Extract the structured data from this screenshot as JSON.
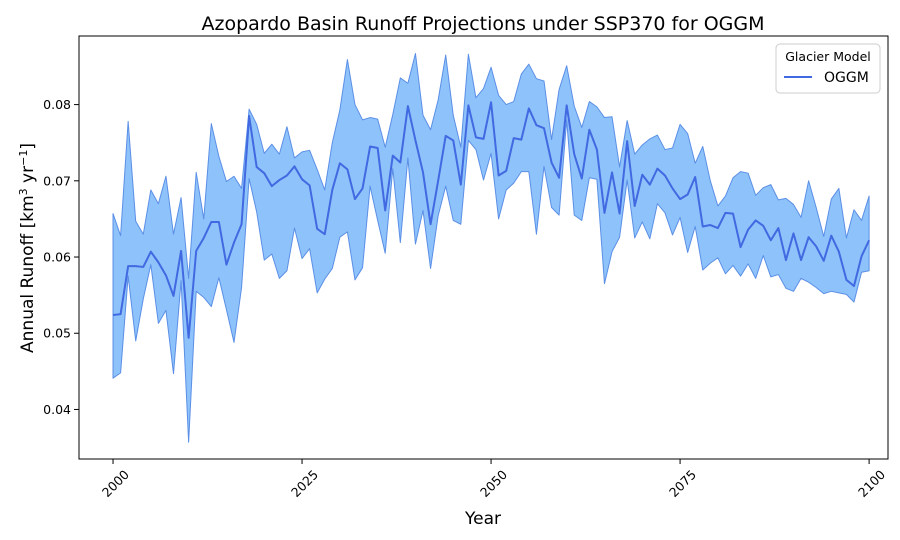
{
  "chart_data": {
    "type": "line",
    "title": "Azopardo Basin Runoff Projections under SSP370 for OGGM",
    "xlabel": "Year",
    "ylabel_main": "Annual Runoff [km",
    "ylabel_sup1": "3",
    "ylabel_mid": " yr",
    "ylabel_sup2": "−1",
    "ylabel_end": "]",
    "xlim": [
      1995.5,
      2102.5
    ],
    "ylim": [
      0.0335,
      0.089
    ],
    "xticks": [
      2000,
      2025,
      2050,
      2075,
      2100
    ],
    "yticks": [
      0.04,
      0.05,
      0.06,
      0.07,
      0.08
    ],
    "ytick_labels": [
      "0.04",
      "0.05",
      "0.06",
      "0.07",
      "0.08"
    ],
    "grid": false,
    "legend": {
      "title": "Glacier Model",
      "placement": "top-right",
      "entries": [
        "OGGM"
      ]
    },
    "colors": {
      "line": "#4169e1",
      "band_fill": "#8ec2fa",
      "band_edge": "#5b8fe6"
    },
    "series": [
      {
        "name": "OGGM",
        "x_start": 2000,
        "x_step": 1,
        "mean": [
          0.0524,
          0.0525,
          0.0588,
          0.0588,
          0.0587,
          0.0607,
          0.0593,
          0.0576,
          0.0549,
          0.0608,
          0.0494,
          0.0608,
          0.0625,
          0.0646,
          0.0646,
          0.059,
          0.0619,
          0.0643,
          0.0785,
          0.0718,
          0.071,
          0.0693,
          0.0701,
          0.0707,
          0.0719,
          0.0702,
          0.0694,
          0.0637,
          0.063,
          0.0688,
          0.0723,
          0.0715,
          0.0676,
          0.069,
          0.0745,
          0.0743,
          0.0661,
          0.0733,
          0.0724,
          0.0798,
          0.0753,
          0.0711,
          0.0643,
          0.07,
          0.0759,
          0.0753,
          0.0695,
          0.0799,
          0.0757,
          0.0755,
          0.0803,
          0.0707,
          0.0713,
          0.0756,
          0.0754,
          0.0795,
          0.0773,
          0.0769,
          0.0724,
          0.0704,
          0.0799,
          0.0735,
          0.0703,
          0.0767,
          0.0741,
          0.0658,
          0.0711,
          0.0657,
          0.0752,
          0.0667,
          0.0708,
          0.0695,
          0.0716,
          0.0707,
          0.069,
          0.0676,
          0.0682,
          0.0705,
          0.064,
          0.0642,
          0.0638,
          0.0658,
          0.0657,
          0.0613,
          0.0636,
          0.0648,
          0.0641,
          0.0622,
          0.0638,
          0.0596,
          0.0631,
          0.0596,
          0.0626,
          0.0614,
          0.0595,
          0.0628,
          0.0607,
          0.057,
          0.0562,
          0.0601,
          0.0622
        ],
        "upper": [
          0.0657,
          0.0628,
          0.0778,
          0.0647,
          0.063,
          0.0688,
          0.067,
          0.0706,
          0.063,
          0.0678,
          0.0572,
          0.0711,
          0.065,
          0.0775,
          0.0732,
          0.0699,
          0.0706,
          0.069,
          0.0794,
          0.0774,
          0.0736,
          0.0748,
          0.0735,
          0.0771,
          0.073,
          0.0738,
          0.074,
          0.0715,
          0.0688,
          0.075,
          0.0793,
          0.0859,
          0.08,
          0.078,
          0.0783,
          0.0781,
          0.0744,
          0.0787,
          0.0835,
          0.0828,
          0.0867,
          0.0786,
          0.0767,
          0.0806,
          0.0865,
          0.0786,
          0.0744,
          0.0866,
          0.0809,
          0.0821,
          0.0849,
          0.0812,
          0.08,
          0.0804,
          0.084,
          0.0853,
          0.0834,
          0.0831,
          0.0754,
          0.082,
          0.0851,
          0.0798,
          0.077,
          0.0804,
          0.0797,
          0.0783,
          0.0784,
          0.0718,
          0.0779,
          0.0735,
          0.0747,
          0.0755,
          0.076,
          0.0741,
          0.0743,
          0.0774,
          0.0762,
          0.0723,
          0.0745,
          0.07,
          0.0667,
          0.068,
          0.0704,
          0.0712,
          0.071,
          0.0681,
          0.0691,
          0.0695,
          0.0675,
          0.0677,
          0.0669,
          0.0652,
          0.07,
          0.0665,
          0.0627,
          0.0676,
          0.069,
          0.0625,
          0.0662,
          0.0648,
          0.068
        ],
        "lower": [
          0.0441,
          0.0448,
          0.0575,
          0.049,
          0.0545,
          0.059,
          0.0513,
          0.053,
          0.0447,
          0.0569,
          0.0357,
          0.0555,
          0.0547,
          0.0535,
          0.0573,
          0.0531,
          0.0488,
          0.056,
          0.0703,
          0.0659,
          0.0596,
          0.0604,
          0.0572,
          0.0582,
          0.0638,
          0.0598,
          0.0611,
          0.0553,
          0.0571,
          0.0585,
          0.0626,
          0.0633,
          0.057,
          0.0586,
          0.0693,
          0.0648,
          0.0605,
          0.0716,
          0.0619,
          0.073,
          0.0617,
          0.0661,
          0.0585,
          0.0654,
          0.0693,
          0.0648,
          0.0643,
          0.0753,
          0.0741,
          0.0701,
          0.0736,
          0.065,
          0.0688,
          0.0697,
          0.0712,
          0.0712,
          0.063,
          0.0719,
          0.0665,
          0.0655,
          0.078,
          0.0655,
          0.0648,
          0.0704,
          0.0702,
          0.0565,
          0.0607,
          0.0626,
          0.0701,
          0.0625,
          0.0646,
          0.0624,
          0.067,
          0.0658,
          0.0629,
          0.0652,
          0.0606,
          0.064,
          0.0583,
          0.0592,
          0.0599,
          0.0578,
          0.0589,
          0.0575,
          0.0591,
          0.0572,
          0.0602,
          0.0574,
          0.0577,
          0.0559,
          0.0555,
          0.0572,
          0.0567,
          0.056,
          0.0552,
          0.0555,
          0.0553,
          0.0551,
          0.0541,
          0.058,
          0.0582
        ]
      }
    ]
  }
}
